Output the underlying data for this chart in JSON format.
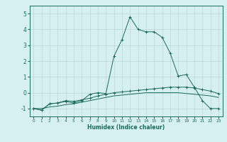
{
  "xlabel": "Humidex (Indice chaleur)",
  "background_color": "#d6f0ef",
  "grid_color": "#b8d8d8",
  "line_color": "#1a6b5a",
  "xlim": [
    -0.5,
    23.5
  ],
  "ylim": [
    -1.5,
    5.5
  ],
  "yticks": [
    -1,
    0,
    1,
    2,
    3,
    4,
    5
  ],
  "xticks": [
    0,
    1,
    2,
    3,
    4,
    5,
    6,
    7,
    8,
    9,
    10,
    11,
    12,
    13,
    14,
    15,
    16,
    17,
    18,
    19,
    20,
    21,
    22,
    23
  ],
  "line1_x": [
    0,
    1,
    2,
    3,
    4,
    5,
    6,
    7,
    8,
    9,
    10,
    11,
    12,
    13,
    14,
    15,
    16,
    17,
    18,
    19,
    20,
    21,
    22,
    23
  ],
  "line1_y": [
    -1.0,
    -1.1,
    -0.7,
    -0.65,
    -0.5,
    -0.55,
    -0.45,
    -0.35,
    -0.2,
    -0.1,
    0.0,
    0.05,
    0.1,
    0.15,
    0.2,
    0.25,
    0.3,
    0.35,
    0.35,
    0.35,
    0.3,
    0.2,
    0.1,
    -0.05
  ],
  "line2_x": [
    0,
    1,
    2,
    3,
    4,
    5,
    6,
    7,
    8,
    9,
    10,
    11,
    12,
    13,
    14,
    15,
    16,
    17,
    18,
    19,
    20,
    21,
    22,
    23
  ],
  "line2_y": [
    -1.0,
    -1.0,
    -0.9,
    -0.85,
    -0.75,
    -0.7,
    -0.6,
    -0.5,
    -0.4,
    -0.3,
    -0.2,
    -0.15,
    -0.1,
    -0.05,
    0.0,
    0.0,
    0.0,
    0.0,
    0.0,
    -0.05,
    -0.1,
    -0.15,
    -0.2,
    -0.3
  ],
  "line3_x": [
    0,
    1,
    2,
    3,
    4,
    5,
    6,
    7,
    8,
    9,
    10,
    11,
    12,
    13,
    14,
    15,
    16,
    17,
    18,
    19,
    20,
    21,
    22,
    23
  ],
  "line3_y": [
    -1.0,
    -1.1,
    -0.7,
    -0.65,
    -0.55,
    -0.65,
    -0.5,
    -0.1,
    0.0,
    -0.05,
    2.3,
    3.35,
    4.8,
    4.0,
    3.85,
    3.85,
    3.5,
    2.5,
    1.05,
    1.15,
    0.35,
    -0.5,
    -1.0,
    -1.0
  ]
}
